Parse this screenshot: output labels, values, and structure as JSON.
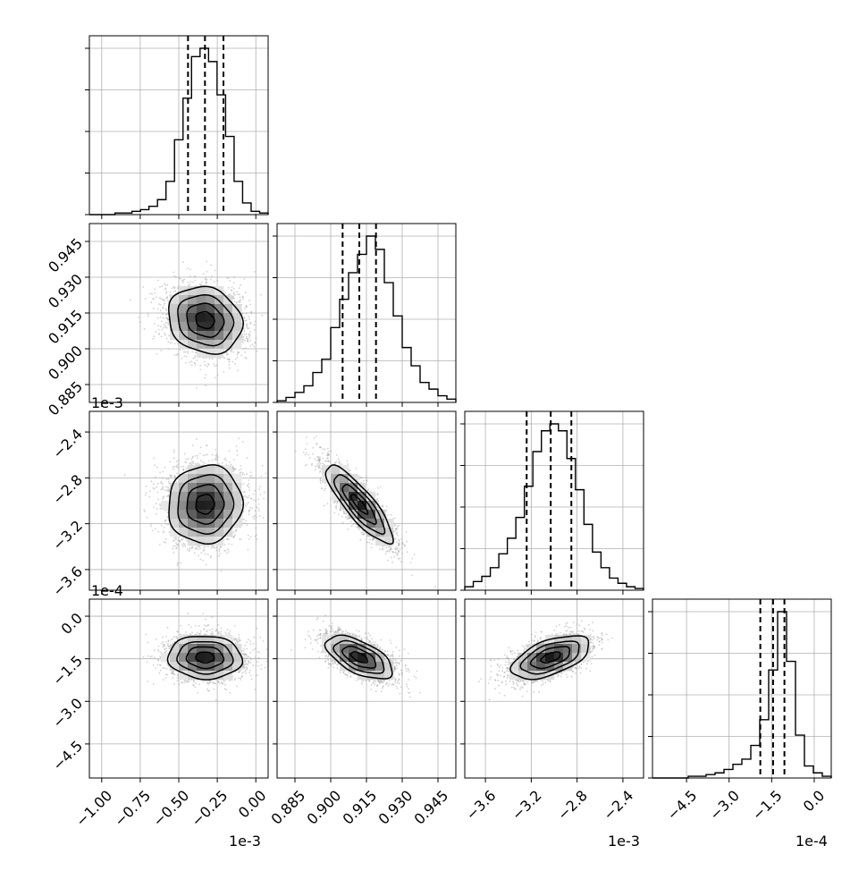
{
  "figure": {
    "type": "corner_plot",
    "n_params": 4,
    "grid": true,
    "colors": {
      "line": "#000000",
      "gridline": "#b0b0b0",
      "scatter": "#9a9a9a",
      "density_dark": "#000000",
      "density_light": "#ffffff"
    }
  },
  "labels": {
    "diag0_xlabel": "",
    "diag1_xlabel": "",
    "diag2_xlabel": "",
    "diag3_xlabel": ""
  },
  "chart_data": {
    "type": "corner",
    "parameters": [
      {
        "index": 0,
        "range": [
          -0.00108,
          8e-05
        ],
        "median": -0.00033,
        "q16": -0.00044,
        "q84": -0.00021,
        "sd": 0.00012,
        "axis_offset": "1e-3",
        "ticks": [
          -0.001,
          -0.00075,
          -0.0005,
          -0.00025,
          0.0
        ],
        "tick_labels": [
          "−1.00",
          "−0.75",
          "−0.50",
          "−0.25",
          "0.00"
        ]
      },
      {
        "index": 1,
        "range": [
          0.8775,
          0.9525
        ],
        "median": 0.912,
        "q16": 0.905,
        "q84": 0.919,
        "sd": 0.007,
        "axis_offset": "",
        "ticks": [
          0.885,
          0.9,
          0.915,
          0.93,
          0.945
        ],
        "tick_labels": [
          "0.885",
          "0.900",
          "0.915",
          "0.930",
          "0.945"
        ]
      },
      {
        "index": 2,
        "range": [
          -0.00378,
          -0.00222
        ],
        "median": -0.00303,
        "q16": -0.00324,
        "q84": -0.00285,
        "sd": 0.00017,
        "axis_offset": "1e-3",
        "ticks": [
          -0.0036,
          -0.0032,
          -0.0028,
          -0.0024
        ],
        "tick_labels": [
          "−3.6",
          "−3.2",
          "−2.8",
          "−2.4"
        ]
      },
      {
        "index": 3,
        "range": [
          -0.00057,
          6e-05
        ],
        "median": -0.000145,
        "q16": -0.00019,
        "q84": -0.000105,
        "sd": 3.8e-05,
        "axis_offset": "1e-4",
        "ticks": [
          -0.00045,
          -0.0003,
          -0.00015,
          0.0
        ],
        "tick_labels": [
          "−4.5",
          "−3.0",
          "−1.5",
          "0.0"
        ]
      }
    ],
    "histograms": [
      {
        "param": 0,
        "counts": [
          0,
          0,
          0,
          1,
          1,
          2,
          3,
          5,
          9,
          20,
          45,
          70,
          95,
          100,
          92,
          72,
          47,
          20,
          7,
          2,
          1
        ]
      },
      {
        "param": 1,
        "counts": [
          1,
          3,
          6,
          10,
          18,
          26,
          45,
          62,
          78,
          89,
          100,
          92,
          72,
          52,
          33,
          22,
          12,
          8,
          4,
          2
        ]
      },
      {
        "param": 2,
        "counts": [
          2,
          5,
          8,
          13,
          21,
          30,
          42,
          60,
          80,
          92,
          96,
          92,
          76,
          58,
          38,
          22,
          13,
          7,
          4,
          2,
          1
        ]
      },
      {
        "param": 3,
        "counts": [
          0,
          0,
          0,
          0,
          1,
          1,
          2,
          3,
          5,
          8,
          11,
          19,
          34,
          63,
          97,
          68,
          25,
          7,
          3,
          1
        ]
      }
    ],
    "correlations": [
      {
        "x": 0,
        "y": 1,
        "rho": -0.15
      },
      {
        "x": 0,
        "y": 2,
        "rho": 0.05
      },
      {
        "x": 1,
        "y": 2,
        "rho": -0.85
      },
      {
        "x": 0,
        "y": 3,
        "rho": -0.05
      },
      {
        "x": 1,
        "y": 3,
        "rho": -0.6
      },
      {
        "x": 2,
        "y": 3,
        "rho": 0.55
      }
    ]
  }
}
